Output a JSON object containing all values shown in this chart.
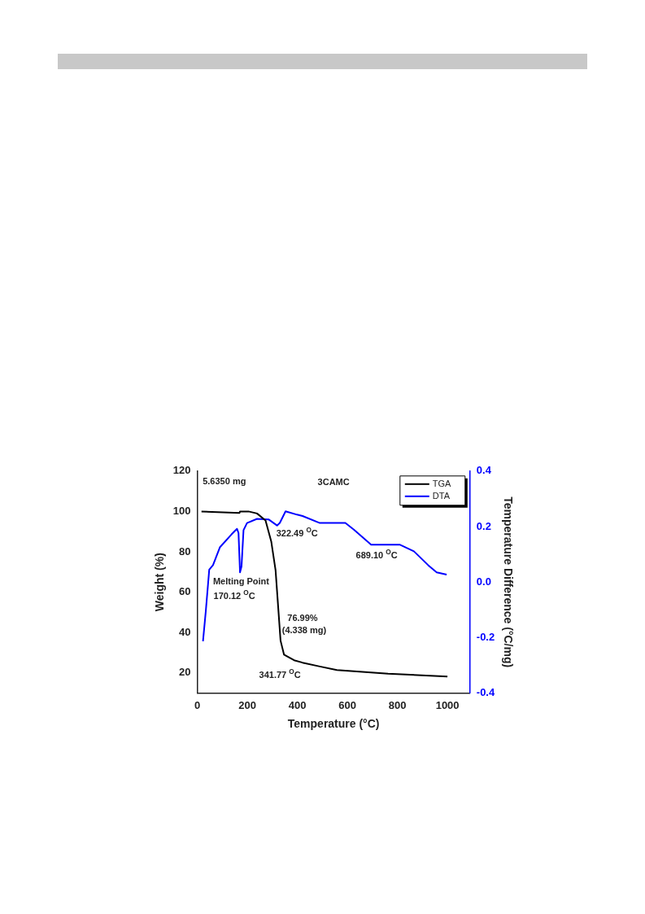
{
  "chart_data": {
    "type": "line",
    "title": "3CAMC",
    "xlabel": "Temperature (°C)",
    "ylabel": "Weight (%)",
    "y2label": "Temperature Difference (°C/mg)",
    "xlim": [
      0,
      1090
    ],
    "xticks": [
      0,
      200,
      400,
      600,
      800,
      1000
    ],
    "ylim": [
      10,
      120
    ],
    "yticks": [
      20,
      40,
      60,
      80,
      100,
      120
    ],
    "y2lim": [
      -0.4,
      0.4
    ],
    "y2ticks": [
      -0.4,
      -0.2,
      {
        "value": 0,
        "label": "0.0"
      },
      0.2,
      0.4
    ],
    "grid": false,
    "legend": "top right",
    "marker": "none",
    "line_style": "solid",
    "series": [
      {
        "name": "TGA",
        "color": "#000000",
        "axis": "y",
        "x": [
          17,
          169,
          171,
          205,
          239,
          273,
          296,
          313,
          325,
          333,
          347,
          387,
          421,
          490,
          558,
          763,
          1000
        ],
        "values": [
          100,
          99.3,
          100,
          100,
          99,
          95.5,
          85,
          71,
          50,
          36,
          29,
          26.3,
          25.1,
          23.2,
          21.4,
          19.6,
          18.2
        ]
      },
      {
        "name": "DTA",
        "color": "#0000ff",
        "axis": "y2",
        "x": [
          23,
          34,
          48,
          63,
          91,
          137,
          159,
          165,
          171,
          177,
          185,
          199,
          239,
          285,
          319,
          330,
          353,
          399,
          421,
          490,
          592,
          626,
          695,
          740,
          809,
          866,
          923,
          957,
          997
        ],
        "values": [
          -0.213,
          -0.107,
          0.045,
          0.061,
          0.126,
          0.172,
          0.192,
          0.177,
          0.035,
          0.056,
          0.187,
          0.213,
          0.228,
          0.226,
          0.204,
          0.213,
          0.255,
          0.243,
          0.238,
          0.213,
          0.213,
          0.189,
          0.135,
          0.135,
          0.135,
          0.111,
          0.061,
          0.035,
          0.027
        ]
      }
    ],
    "annotations": [
      "5.6350 mg",
      "Melting Point",
      "170.12 $^{O}$C",
      "322.49 $^{O}$C",
      "689.10 $^{O}$C",
      "76.99%",
      "(4.338 mg)",
      "341.77 $^{O}$C"
    ]
  }
}
